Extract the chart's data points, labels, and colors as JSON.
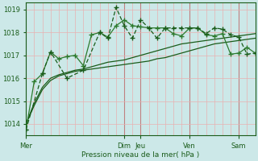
{
  "background_color": "#cce8e8",
  "plot_bg_color": "#cce8e8",
  "grid_color_minor": "#e8b0b0",
  "grid_color_major_x": "#c08080",
  "grid_color_major_y": "#e8b0b0",
  "line_color_dark": "#1a5c1a",
  "line_color_mid": "#2d7a2d",
  "xlabel": "Pression niveau de la mer( hPa )",
  "ylim": [
    1013.5,
    1019.3
  ],
  "yticks": [
    1014,
    1015,
    1016,
    1017,
    1018,
    1019
  ],
  "day_labels": [
    "Mer",
    "Dim",
    "Jeu",
    "Ven",
    "Sam"
  ],
  "day_x": [
    0,
    12,
    14,
    20,
    26
  ],
  "xmin": 0,
  "xmax": 28,
  "n_points": 29,
  "series_smooth1_y": [
    1014.0,
    1014.8,
    1015.5,
    1015.9,
    1016.1,
    1016.2,
    1016.3,
    1016.35,
    1016.4,
    1016.45,
    1016.5,
    1016.55,
    1016.6,
    1016.65,
    1016.7,
    1016.75,
    1016.85,
    1016.9,
    1017.0,
    1017.1,
    1017.2,
    1017.3,
    1017.4,
    1017.5,
    1017.55,
    1017.6,
    1017.65,
    1017.7,
    1017.75
  ],
  "series_smooth2_y": [
    1014.0,
    1014.9,
    1015.6,
    1016.0,
    1016.15,
    1016.25,
    1016.35,
    1016.4,
    1016.5,
    1016.6,
    1016.7,
    1016.75,
    1016.8,
    1016.9,
    1017.0,
    1017.1,
    1017.2,
    1017.3,
    1017.4,
    1017.5,
    1017.55,
    1017.6,
    1017.65,
    1017.7,
    1017.75,
    1017.8,
    1017.85,
    1017.9,
    1017.95
  ],
  "series_jagged_x": [
    0,
    1,
    2,
    3,
    4,
    5,
    6,
    7,
    8,
    9,
    10,
    11,
    12,
    13,
    14,
    15,
    16,
    17,
    18,
    19,
    20,
    21,
    22,
    23,
    24,
    25,
    26,
    27,
    28
  ],
  "series_jagged_y": [
    1013.75,
    1015.85,
    1016.2,
    1017.15,
    1016.85,
    1016.95,
    1017.0,
    1016.55,
    1017.9,
    1018.0,
    1017.8,
    1018.3,
    1018.55,
    1018.3,
    1018.25,
    1018.2,
    1018.2,
    1018.2,
    1017.95,
    1017.85,
    1018.2,
    1018.2,
    1017.9,
    1017.85,
    1017.95,
    1017.05,
    1017.1,
    1017.35,
    1017.1
  ],
  "series_dotted_x": [
    0,
    2,
    3,
    5,
    7,
    9,
    10,
    11,
    12,
    13,
    14,
    15,
    16,
    17,
    18,
    19,
    20,
    21,
    22,
    23,
    24,
    25,
    26,
    27,
    28
  ],
  "series_dotted_y": [
    1013.75,
    1016.2,
    1017.15,
    1016.0,
    1016.35,
    1018.0,
    1017.75,
    1019.1,
    1018.3,
    1017.75,
    1018.55,
    1018.2,
    1017.75,
    1018.2,
    1018.2,
    1018.2,
    1018.2,
    1018.2,
    1017.95,
    1018.2,
    1018.15,
    1017.9,
    1017.8,
    1017.05,
    1017.1
  ]
}
